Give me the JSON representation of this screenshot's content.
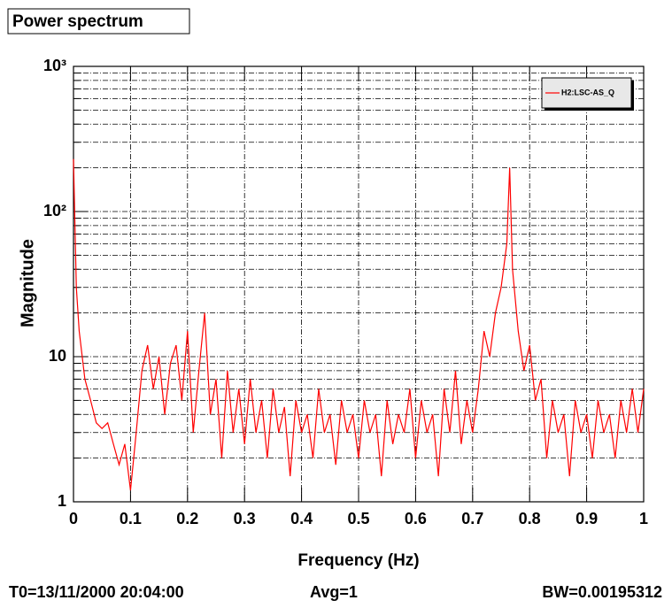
{
  "chart_data": {
    "type": "line",
    "title": "Power spectrum",
    "x_label": "Frequency (Hz)",
    "y_label": "Magnitude",
    "footer": [
      "T0=13/11/2000 20:04:00",
      "Avg=1",
      "BW=0.00195312"
    ],
    "log_y": true,
    "grid": true,
    "legend": "top-right",
    "xlim": [
      0,
      1
    ],
    "xticks": [
      0,
      0.1,
      0.2,
      0.3,
      0.4,
      0.5,
      0.6,
      0.7,
      0.8,
      0.9,
      1
    ],
    "ylim": [
      1,
      1000
    ],
    "yticks": [
      1,
      10,
      {
        "value": 100,
        "label": "10²"
      },
      {
        "value": 1000,
        "label": "10³"
      }
    ],
    "yminorticks": [
      2,
      3,
      4,
      5,
      6,
      7,
      8,
      9,
      20,
      30,
      40,
      50,
      60,
      70,
      80,
      90,
      200,
      300,
      400,
      500,
      600,
      700,
      800,
      900
    ],
    "x": [
      0,
      0.005,
      0.01,
      0.02,
      0.03,
      0.04,
      0.05,
      0.06,
      0.07,
      0.08,
      0.09,
      0.1,
      0.11,
      0.12,
      0.13,
      0.14,
      0.15,
      0.16,
      0.17,
      0.18,
      0.19,
      0.2,
      0.21,
      0.22,
      0.23,
      0.24,
      0.25,
      0.26,
      0.27,
      0.28,
      0.29,
      0.3,
      0.31,
      0.32,
      0.33,
      0.34,
      0.35,
      0.36,
      0.37,
      0.38,
      0.39,
      0.4,
      0.41,
      0.42,
      0.43,
      0.44,
      0.45,
      0.46,
      0.47,
      0.48,
      0.49,
      0.5,
      0.51,
      0.52,
      0.53,
      0.54,
      0.55,
      0.56,
      0.57,
      0.58,
      0.59,
      0.6,
      0.61,
      0.62,
      0.63,
      0.64,
      0.65,
      0.66,
      0.67,
      0.68,
      0.69,
      0.7,
      0.71,
      0.72,
      0.73,
      0.74,
      0.75,
      0.76,
      0.765,
      0.77,
      0.78,
      0.79,
      0.8,
      0.81,
      0.82,
      0.83,
      0.84,
      0.85,
      0.86,
      0.87,
      0.88,
      0.89,
      0.9,
      0.91,
      0.92,
      0.93,
      0.94,
      0.95,
      0.96,
      0.97,
      0.98,
      0.99,
      1
    ],
    "series": [
      {
        "name": "H2:LSC-AS_Q",
        "color": "#ff0000",
        "values": [
          230,
          30,
          15,
          7,
          5,
          3.5,
          3.2,
          3.5,
          2.5,
          1.8,
          2.5,
          1.2,
          3,
          8,
          12,
          6,
          10,
          4,
          9,
          12,
          5,
          15,
          3,
          8,
          20,
          4,
          7,
          2,
          8,
          3,
          6,
          2.5,
          7,
          3,
          5,
          2,
          6,
          3,
          4.5,
          1.5,
          5,
          3,
          4,
          2,
          6,
          3,
          4,
          1.8,
          5,
          3,
          4,
          2,
          5,
          3,
          4,
          1.5,
          5,
          2.5,
          4,
          3,
          6,
          2,
          5,
          3,
          4,
          1.5,
          6,
          3,
          8,
          2.5,
          5,
          3,
          6,
          15,
          10,
          20,
          30,
          60,
          200,
          40,
          15,
          8,
          12,
          5,
          7,
          2,
          5,
          3,
          4,
          1.5,
          5,
          3,
          4,
          2,
          5,
          3,
          4,
          2,
          5,
          3,
          6,
          3,
          6
        ]
      }
    ]
  }
}
